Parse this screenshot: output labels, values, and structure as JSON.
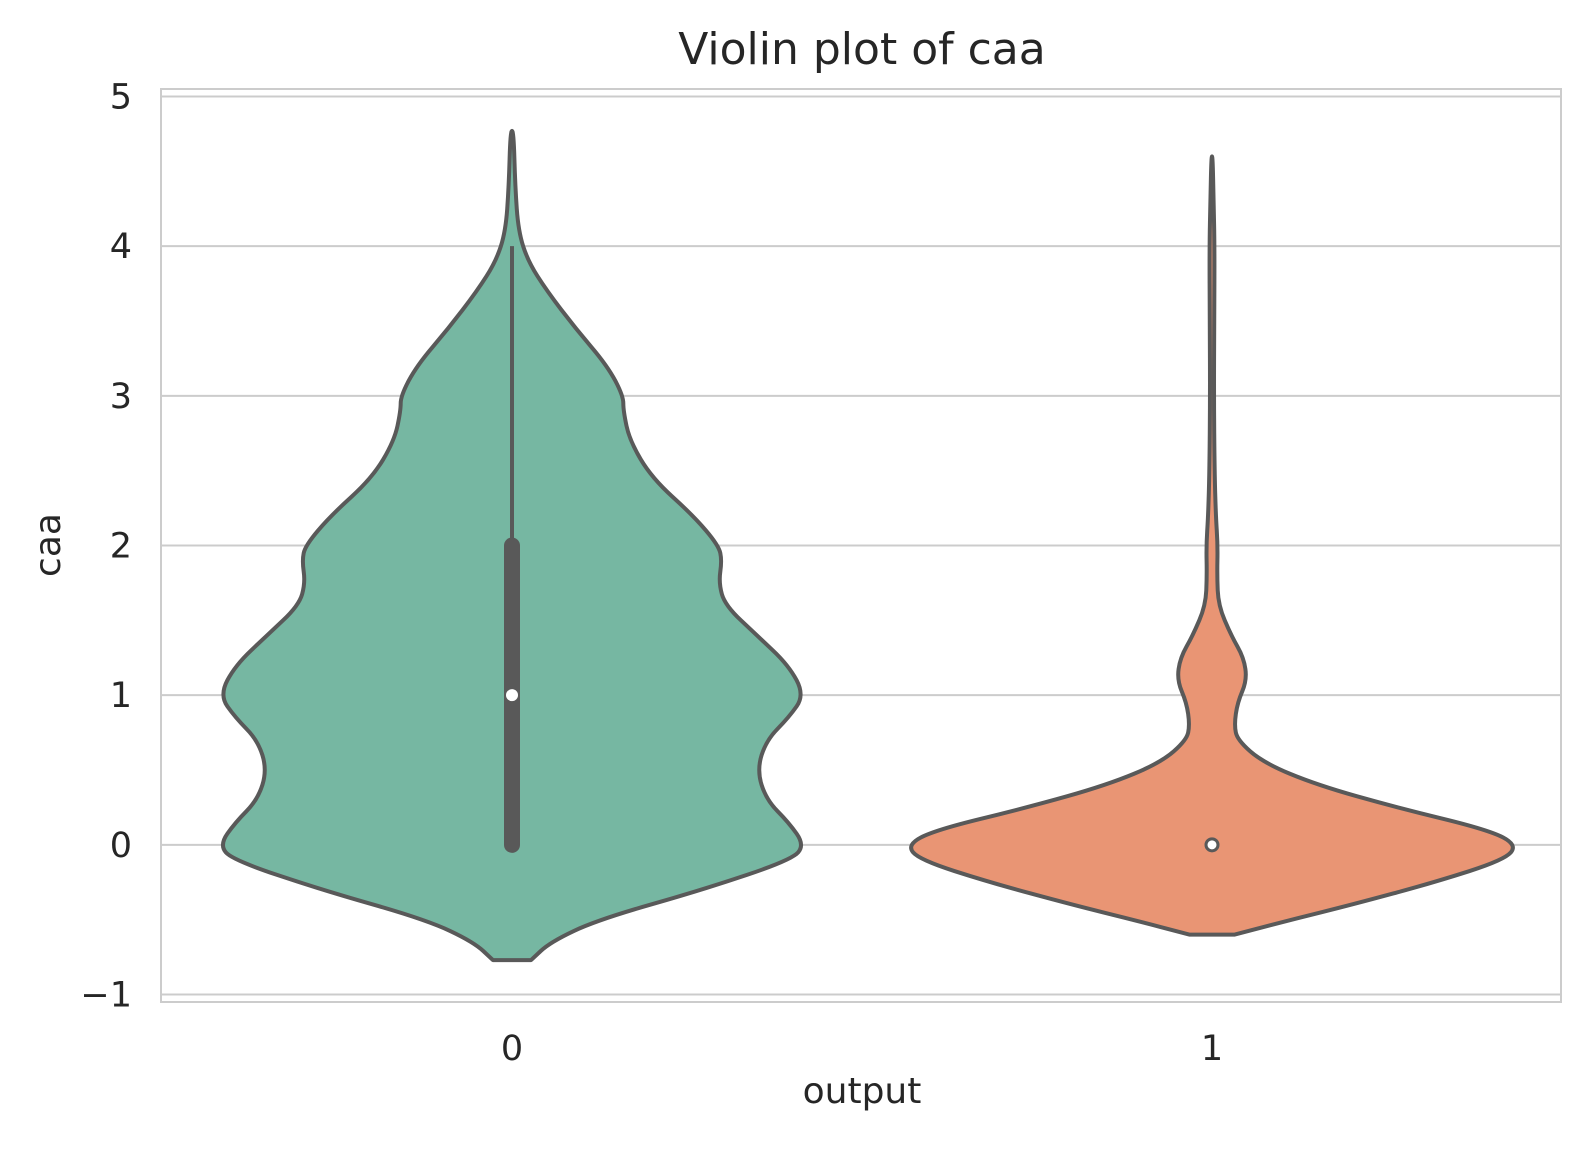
{
  "chart_data": {
    "type": "violin",
    "title": "Violin plot of caa",
    "xlabel": "output",
    "ylabel": "caa",
    "categories": [
      "0",
      "1"
    ],
    "ylim": [
      -1.05,
      5.05
    ],
    "yticks": [
      "−1",
      "0",
      "1",
      "2",
      "3",
      "4",
      "5"
    ],
    "ytick_values": [
      -1,
      0,
      1,
      2,
      3,
      4,
      5
    ],
    "grid": true,
    "series": [
      {
        "category": "0",
        "color": "#76b7a2",
        "range": [
          -0.77,
          4.77
        ],
        "median": 1,
        "q1": 0,
        "q3": 2,
        "whisker": [
          0,
          4
        ],
        "density": [
          [
            -0.77,
            0.06
          ],
          [
            -0.65,
            0.12
          ],
          [
            -0.5,
            0.27
          ],
          [
            -0.3,
            0.6
          ],
          [
            -0.1,
            0.88
          ],
          [
            0.0,
            0.92
          ],
          [
            0.15,
            0.87
          ],
          [
            0.3,
            0.8
          ],
          [
            0.5,
            0.77
          ],
          [
            0.7,
            0.8
          ],
          [
            0.85,
            0.87
          ],
          [
            1.0,
            0.92
          ],
          [
            1.2,
            0.87
          ],
          [
            1.4,
            0.77
          ],
          [
            1.6,
            0.67
          ],
          [
            1.75,
            0.65
          ],
          [
            1.9,
            0.66
          ],
          [
            2.0,
            0.65
          ],
          [
            2.2,
            0.57
          ],
          [
            2.45,
            0.44
          ],
          [
            2.7,
            0.37
          ],
          [
            2.9,
            0.35
          ],
          [
            3.0,
            0.35
          ],
          [
            3.2,
            0.3
          ],
          [
            3.45,
            0.2
          ],
          [
            3.7,
            0.11
          ],
          [
            3.9,
            0.05
          ],
          [
            4.1,
            0.02
          ],
          [
            4.4,
            0.01
          ],
          [
            4.77,
            0.005
          ]
        ]
      },
      {
        "category": "1",
        "color": "#e99574",
        "range": [
          -0.6,
          4.6
        ],
        "median": 0,
        "q1": 0,
        "q3": 0,
        "whisker": [
          0,
          0
        ],
        "density": [
          [
            -0.6,
            0.07
          ],
          [
            -0.5,
            0.25
          ],
          [
            -0.4,
            0.44
          ],
          [
            -0.25,
            0.7
          ],
          [
            -0.1,
            0.92
          ],
          [
            0.0,
            0.96
          ],
          [
            0.1,
            0.87
          ],
          [
            0.25,
            0.58
          ],
          [
            0.4,
            0.33
          ],
          [
            0.55,
            0.16
          ],
          [
            0.7,
            0.08
          ],
          [
            0.8,
            0.07
          ],
          [
            0.95,
            0.08
          ],
          [
            1.1,
            0.11
          ],
          [
            1.25,
            0.1
          ],
          [
            1.4,
            0.06
          ],
          [
            1.6,
            0.02
          ],
          [
            1.8,
            0.016
          ],
          [
            2.0,
            0.018
          ],
          [
            2.2,
            0.012
          ],
          [
            2.5,
            0.008
          ],
          [
            3.0,
            0.006
          ],
          [
            3.5,
            0.007
          ],
          [
            4.0,
            0.008
          ],
          [
            4.3,
            0.005
          ],
          [
            4.6,
            0.002
          ]
        ]
      }
    ]
  }
}
